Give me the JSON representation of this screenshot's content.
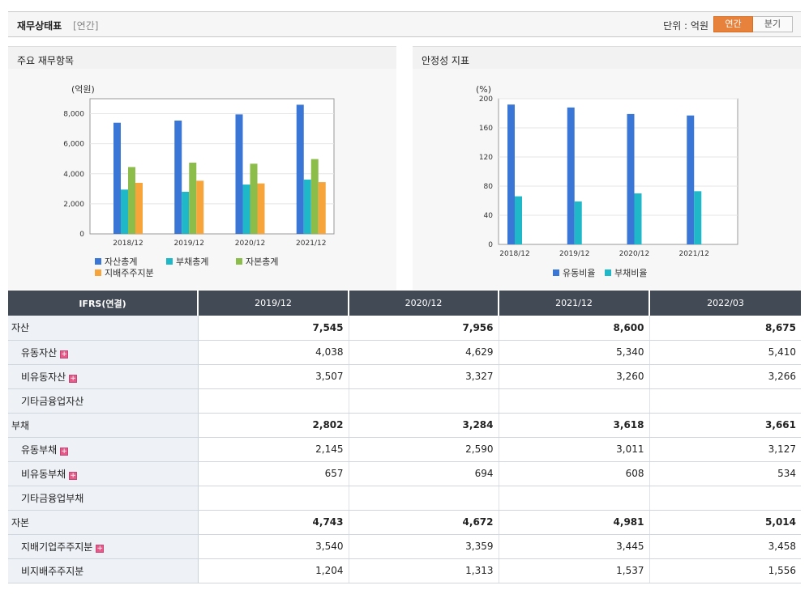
{
  "header": {
    "title": "재무상태표",
    "subtitle": "[연간]",
    "unit_label": "단위 : 억원",
    "toggle": [
      "연간",
      "분기"
    ],
    "active_toggle": 0
  },
  "left_panel": {
    "title": "주요 재무항목"
  },
  "right_panel": {
    "title": "안정성 지표"
  },
  "chart_data": [
    {
      "type": "bar",
      "title": "",
      "unit": "(억원)",
      "categories": [
        "2018/12",
        "2019/12",
        "2020/12",
        "2021/12"
      ],
      "ylim": [
        0,
        9000
      ],
      "yticks": [
        0,
        2000,
        4000,
        6000,
        8000
      ],
      "ytick_labels": [
        "0",
        "2,000",
        "4,000",
        "6,000",
        "8,000"
      ],
      "grid": true,
      "series": [
        {
          "name": "자산총계",
          "color": "#3a76d6",
          "values": [
            7400,
            7545,
            7956,
            8600
          ]
        },
        {
          "name": "부채총계",
          "color": "#1fb8c9",
          "values": [
            2950,
            2802,
            3284,
            3618
          ]
        },
        {
          "name": "자본총계",
          "color": "#8cbc4a",
          "values": [
            4450,
            4743,
            4672,
            4981
          ]
        },
        {
          "name": "지배주주지분",
          "color": "#f7a53a",
          "values": [
            3400,
            3540,
            3359,
            3445
          ]
        }
      ]
    },
    {
      "type": "bar",
      "title": "",
      "unit": "(%)",
      "categories": [
        "2018/12",
        "2019/12",
        "2020/12",
        "2021/12"
      ],
      "ylim": [
        0,
        200
      ],
      "yticks": [
        0,
        40,
        80,
        120,
        160,
        200
      ],
      "ytick_labels": [
        "0",
        "40",
        "80",
        "120",
        "160",
        "200"
      ],
      "grid": true,
      "series": [
        {
          "name": "유동비율",
          "color": "#3a76d6",
          "values": [
            192,
            188,
            179,
            177
          ]
        },
        {
          "name": "부채비율",
          "color": "#1fb8c9",
          "values": [
            66,
            59,
            70,
            73
          ]
        }
      ]
    }
  ],
  "table": {
    "header": [
      "IFRS(연결)",
      "2019/12",
      "2020/12",
      "2021/12",
      "2022/03"
    ],
    "rows": [
      {
        "label": "자산",
        "bold": true,
        "sub": false,
        "expand": false,
        "values": [
          "7,545",
          "7,956",
          "8,600",
          "8,675"
        ]
      },
      {
        "label": "유동자산",
        "bold": false,
        "sub": true,
        "expand": true,
        "values": [
          "4,038",
          "4,629",
          "5,340",
          "5,410"
        ]
      },
      {
        "label": "비유동자산",
        "bold": false,
        "sub": true,
        "expand": true,
        "values": [
          "3,507",
          "3,327",
          "3,260",
          "3,266"
        ]
      },
      {
        "label": "기타금융업자산",
        "bold": false,
        "sub": true,
        "expand": false,
        "values": [
          "",
          "",
          "",
          ""
        ]
      },
      {
        "label": "부채",
        "bold": true,
        "sub": false,
        "expand": false,
        "values": [
          "2,802",
          "3,284",
          "3,618",
          "3,661"
        ]
      },
      {
        "label": "유동부채",
        "bold": false,
        "sub": true,
        "expand": true,
        "values": [
          "2,145",
          "2,590",
          "3,011",
          "3,127"
        ]
      },
      {
        "label": "비유동부채",
        "bold": false,
        "sub": true,
        "expand": true,
        "values": [
          "657",
          "694",
          "608",
          "534"
        ]
      },
      {
        "label": "기타금융업부채",
        "bold": false,
        "sub": true,
        "expand": false,
        "values": [
          "",
          "",
          "",
          ""
        ]
      },
      {
        "label": "자본",
        "bold": true,
        "sub": false,
        "expand": false,
        "values": [
          "4,743",
          "4,672",
          "4,981",
          "5,014"
        ]
      },
      {
        "label": "지배기업주주지분",
        "bold": false,
        "sub": true,
        "expand": true,
        "values": [
          "3,540",
          "3,359",
          "3,445",
          "3,458"
        ]
      },
      {
        "label": "비지배주주지분",
        "bold": false,
        "sub": true,
        "expand": false,
        "values": [
          "1,204",
          "1,313",
          "1,537",
          "1,556"
        ]
      }
    ]
  }
}
